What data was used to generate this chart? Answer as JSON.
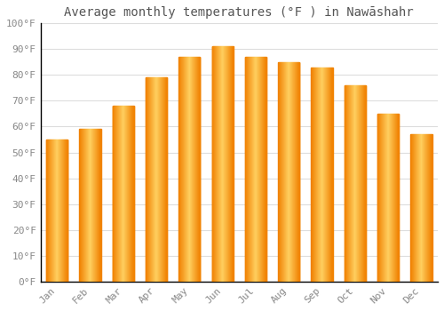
{
  "title": "Average monthly temperatures (°F ) in Nawāshahr",
  "months": [
    "Jan",
    "Feb",
    "Mar",
    "Apr",
    "May",
    "Jun",
    "Jul",
    "Aug",
    "Sep",
    "Oct",
    "Nov",
    "Dec"
  ],
  "values": [
    55,
    59,
    68,
    79,
    87,
    91,
    87,
    85,
    83,
    76,
    65,
    57
  ],
  "ylim": [
    0,
    100
  ],
  "yticks": [
    0,
    10,
    20,
    30,
    40,
    50,
    60,
    70,
    80,
    90,
    100
  ],
  "ytick_labels": [
    "0°F",
    "10°F",
    "20°F",
    "30°F",
    "40°F",
    "50°F",
    "60°F",
    "70°F",
    "80°F",
    "90°F",
    "100°F"
  ],
  "background_color": "#FFFFFF",
  "grid_color": "#DDDDDD",
  "bar_color_center": "#FFAA00",
  "bar_color_edge": "#F08000",
  "bar_color_light": "#FFD060",
  "title_fontsize": 10,
  "tick_fontsize": 8,
  "tick_color": "#888888",
  "title_color": "#555555",
  "axis_color": "#000000",
  "bar_width": 0.65
}
